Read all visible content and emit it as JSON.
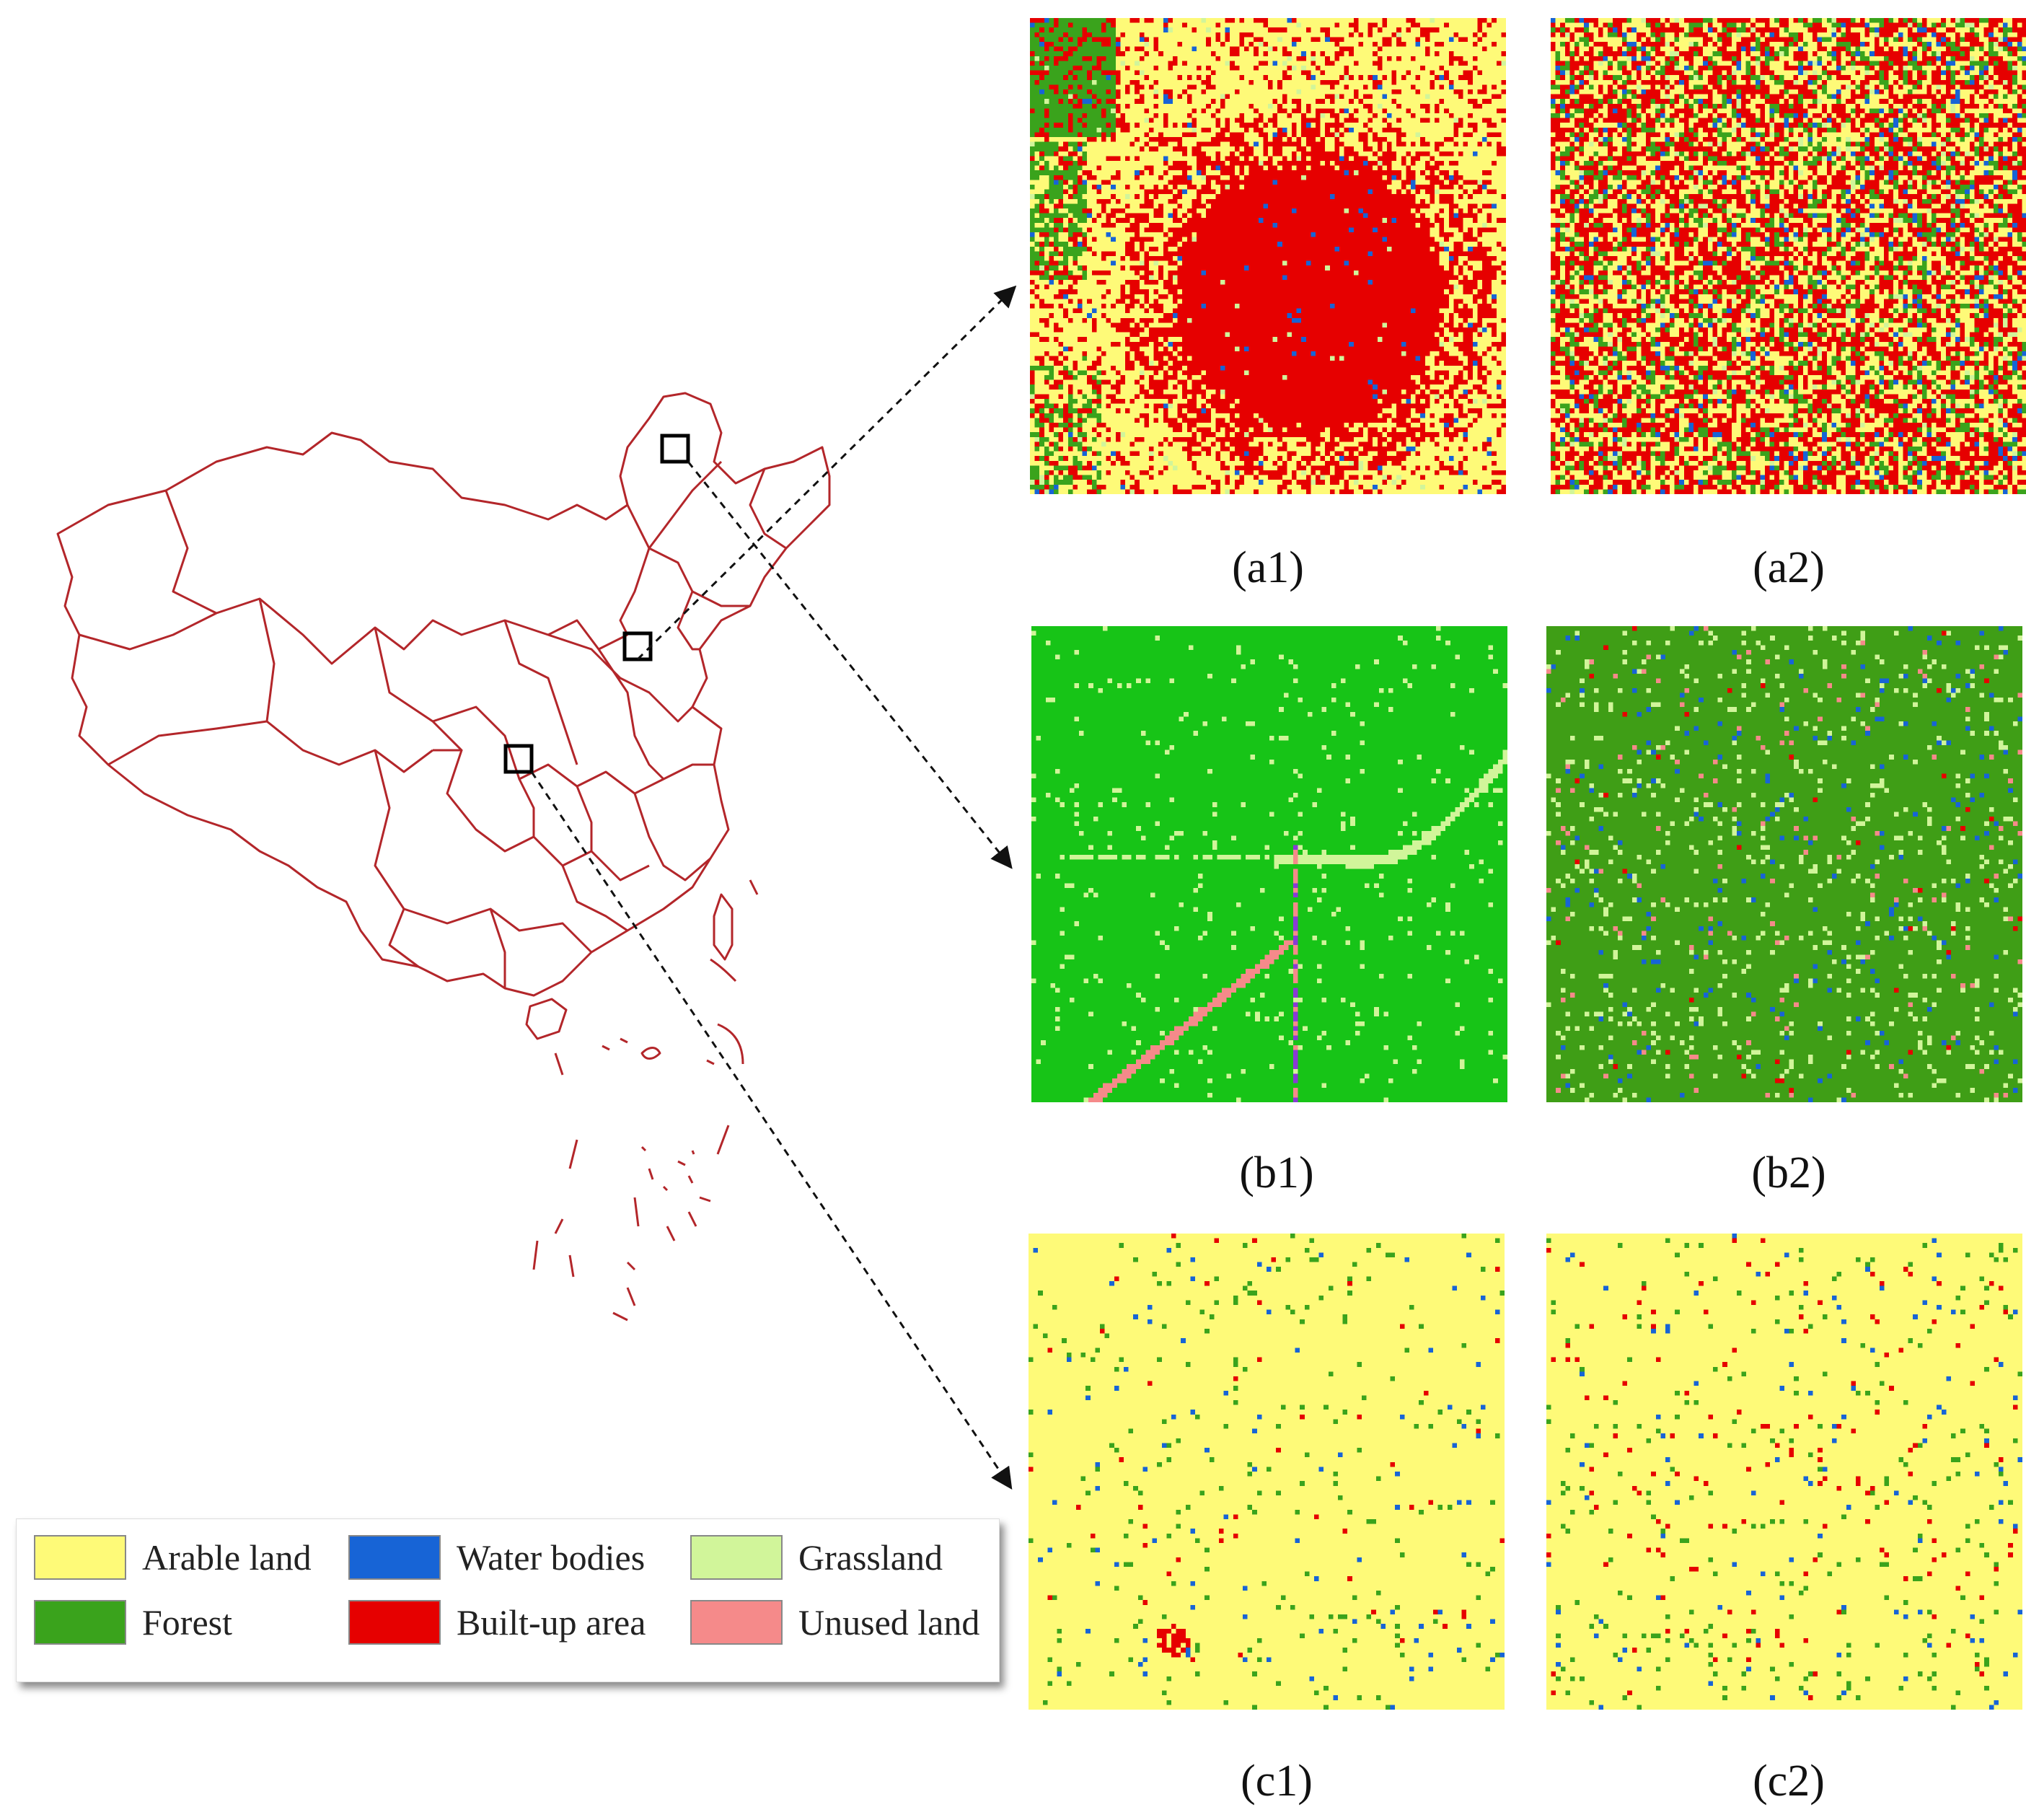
{
  "colors": {
    "arable": "#fefa78",
    "forest": "#3aa31c",
    "water": "#1764d6",
    "builtup": "#e60000",
    "grassland": "#d1f59a",
    "unused": "#f58a8a",
    "boundary": "#b3262a"
  },
  "legend": [
    {
      "label": "Arable land",
      "color": "#fefa78"
    },
    {
      "label": "Water bodies",
      "color": "#1764d6"
    },
    {
      "label": "Grassland",
      "color": "#d1f59a"
    },
    {
      "label": "Forest",
      "color": "#3aa31c"
    },
    {
      "label": "Built-up area",
      "color": "#e60000"
    },
    {
      "label": "Unused land",
      "color": "#f58a8a"
    }
  ],
  "panels": [
    {
      "label": "(a1)",
      "pattern": "urban"
    },
    {
      "label": "(a2)",
      "pattern": "urban-random"
    },
    {
      "label": "(b1)",
      "pattern": "forest"
    },
    {
      "label": "(b2)",
      "pattern": "forest-random"
    },
    {
      "label": "(c1)",
      "pattern": "arable"
    },
    {
      "label": "(c2)",
      "pattern": "arable-random"
    }
  ],
  "study_areas": [
    {
      "name": "study-area-a"
    },
    {
      "name": "study-area-b"
    },
    {
      "name": "study-area-c"
    }
  ]
}
